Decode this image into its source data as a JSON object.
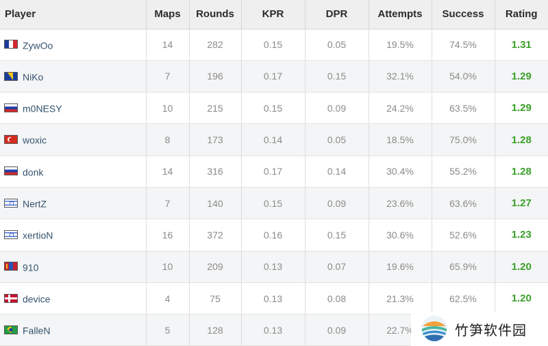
{
  "table": {
    "headers": [
      "Player",
      "Maps",
      "Rounds",
      "KPR",
      "DPR",
      "Attempts",
      "Success",
      "Rating"
    ],
    "rows": [
      {
        "flag": "fr",
        "player": "ZywOo",
        "maps": "14",
        "rounds": "282",
        "kpr": "0.15",
        "dpr": "0.05",
        "attempts": "19.5%",
        "success": "74.5%",
        "rating": "1.31"
      },
      {
        "flag": "ba",
        "player": "NiKo",
        "maps": "7",
        "rounds": "196",
        "kpr": "0.17",
        "dpr": "0.15",
        "attempts": "32.1%",
        "success": "54.0%",
        "rating": "1.29"
      },
      {
        "flag": "ru",
        "player": "m0NESY",
        "maps": "10",
        "rounds": "215",
        "kpr": "0.15",
        "dpr": "0.09",
        "attempts": "24.2%",
        "success": "63.5%",
        "rating": "1.29"
      },
      {
        "flag": "tr",
        "player": "woxic",
        "maps": "8",
        "rounds": "173",
        "kpr": "0.14",
        "dpr": "0.05",
        "attempts": "18.5%",
        "success": "75.0%",
        "rating": "1.28"
      },
      {
        "flag": "ru",
        "player": "donk",
        "maps": "14",
        "rounds": "316",
        "kpr": "0.17",
        "dpr": "0.14",
        "attempts": "30.4%",
        "success": "55.2%",
        "rating": "1.28"
      },
      {
        "flag": "il",
        "player": "NertZ",
        "maps": "7",
        "rounds": "140",
        "kpr": "0.15",
        "dpr": "0.09",
        "attempts": "23.6%",
        "success": "63.6%",
        "rating": "1.27"
      },
      {
        "flag": "il",
        "player": "xertioN",
        "maps": "16",
        "rounds": "372",
        "kpr": "0.16",
        "dpr": "0.15",
        "attempts": "30.6%",
        "success": "52.6%",
        "rating": "1.23"
      },
      {
        "flag": "mn",
        "player": "910",
        "maps": "10",
        "rounds": "209",
        "kpr": "0.13",
        "dpr": "0.07",
        "attempts": "19.6%",
        "success": "65.9%",
        "rating": "1.20"
      },
      {
        "flag": "dk",
        "player": "device",
        "maps": "4",
        "rounds": "75",
        "kpr": "0.13",
        "dpr": "0.08",
        "attempts": "21.3%",
        "success": "62.5%",
        "rating": "1.20"
      },
      {
        "flag": "br",
        "player": "FalleN",
        "maps": "5",
        "rounds": "128",
        "kpr": "0.13",
        "dpr": "0.09",
        "attempts": "22.7%",
        "success": "",
        "rating": ""
      }
    ]
  },
  "watermark": {
    "text": "竹笋软件园"
  },
  "colors": {
    "rating": "#3aa02a",
    "player_name": "#36536f",
    "header_bg": "#efefef",
    "row_alt_bg": "#f4f5f6"
  }
}
